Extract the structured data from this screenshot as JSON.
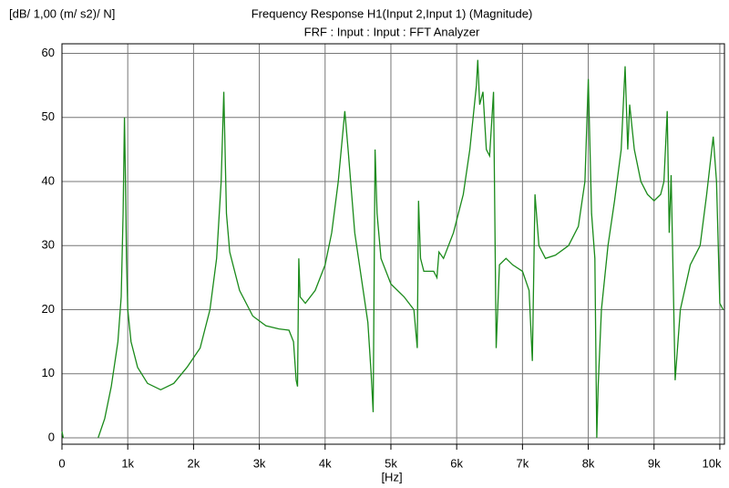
{
  "chart_data": {
    "type": "line",
    "title": "Frequency Response H1(Input 2,Input 1) (Magnitude)",
    "subtitle": "FRF : Input : Input : FFT Analyzer",
    "y_label": "[dB/ 1,00 (m/ s2)/ N]",
    "x_label": "[Hz]",
    "x": [
      0,
      20,
      300,
      550,
      650,
      750,
      850,
      900,
      930,
      950,
      965,
      980,
      1000,
      1050,
      1150,
      1300,
      1500,
      1700,
      1900,
      2100,
      2250,
      2350,
      2420,
      2460,
      2500,
      2550,
      2700,
      2900,
      3100,
      3300,
      3450,
      3520,
      3560,
      3580,
      3600,
      3620,
      3700,
      3850,
      4000,
      4100,
      4200,
      4300,
      4350,
      4450,
      4550,
      4650,
      4700,
      4730,
      4760,
      4790,
      4850,
      5000,
      5200,
      5350,
      5400,
      5420,
      5450,
      5500,
      5650,
      5700,
      5730,
      5800,
      5950,
      6100,
      6200,
      6300,
      6320,
      6350,
      6400,
      6450,
      6500,
      6560,
      6600,
      6650,
      6750,
      6850,
      7000,
      7100,
      7150,
      7190,
      7250,
      7350,
      7500,
      7700,
      7850,
      7950,
      8000,
      8050,
      8100,
      8130,
      8150,
      8200,
      8300,
      8400,
      8500,
      8560,
      8600,
      8630,
      8700,
      8800,
      8900,
      9000,
      9100,
      9150,
      9200,
      9230,
      9260,
      9300,
      9320,
      9400,
      9550,
      9700,
      9800,
      9900,
      9950,
      10000,
      10050
    ],
    "series": [
      {
        "color": "#1a8a1a",
        "values": [
          1,
          0,
          null,
          0,
          3,
          8,
          15,
          22,
          35,
          50,
          40,
          28,
          20,
          15,
          11,
          8.5,
          7.5,
          8.5,
          11,
          14,
          20,
          28,
          40,
          54,
          35,
          29,
          23,
          19,
          17.5,
          17,
          16.8,
          15,
          9,
          8,
          28,
          22,
          21,
          23,
          27,
          32,
          40,
          51,
          45,
          32,
          25,
          18,
          10,
          4,
          45,
          35,
          28,
          24,
          22,
          20,
          14,
          37,
          28,
          26,
          26,
          25,
          29,
          28,
          32,
          38,
          45,
          55,
          59,
          52,
          54,
          45,
          44,
          54,
          14,
          27,
          28,
          27,
          26,
          23,
          12,
          38,
          30,
          28,
          28.5,
          30,
          33,
          40,
          56,
          35,
          28,
          0,
          8,
          20,
          30,
          37,
          45,
          58,
          45,
          52,
          45,
          40,
          38,
          37,
          38,
          40,
          51,
          32,
          41,
          20,
          9,
          20,
          27,
          30,
          38,
          47,
          40,
          21,
          20
        ]
      }
    ],
    "xlim": [
      0,
      10070
    ],
    "ylim": [
      -1,
      61.5
    ],
    "xticks": [
      0,
      {
        "value": 1000,
        "label": "1k"
      },
      {
        "value": 2000,
        "label": "2k"
      },
      {
        "value": 3000,
        "label": "3k"
      },
      {
        "value": 4000,
        "label": "4k"
      },
      {
        "value": 5000,
        "label": "5k"
      },
      {
        "value": 6000,
        "label": "6k"
      },
      {
        "value": 7000,
        "label": "7k"
      },
      {
        "value": 8000,
        "label": "8k"
      },
      {
        "value": 9000,
        "label": "9k"
      },
      {
        "value": 10000,
        "label": "10k"
      }
    ],
    "yticks": [
      0,
      10,
      20,
      30,
      40,
      50,
      60
    ],
    "grid": true
  }
}
